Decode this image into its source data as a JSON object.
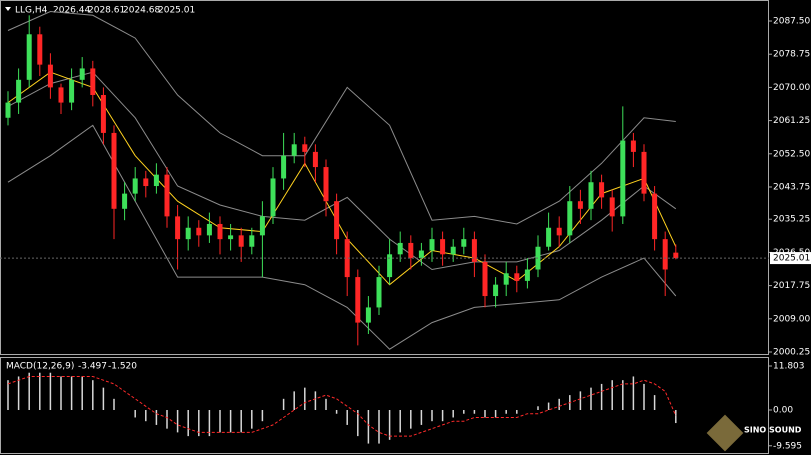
{
  "chart_data": [
    {
      "type": "candlestick",
      "title": "LLG,H4",
      "open": [
        2062,
        2066,
        2072,
        2084,
        2076,
        2070,
        2066,
        2072,
        2075,
        2068,
        2058,
        2038,
        2042,
        2046,
        2044,
        2047,
        2036,
        2030,
        2033,
        2031,
        2034,
        2030,
        2031,
        2028,
        2031,
        2036,
        2046,
        2052,
        2055,
        2053,
        2049,
        2040,
        2030,
        2020,
        2008,
        2012,
        2020,
        2026,
        2029,
        2025,
        2027,
        2030,
        2026,
        2028,
        2030,
        2024,
        2015,
        2018,
        2021,
        2019,
        2022,
        2028,
        2033,
        2031,
        2040,
        2038,
        2045,
        2041,
        2036,
        2056,
        2053,
        2042,
        2030,
        2026.44
      ],
      "high": [
        2069,
        2075,
        2089,
        2086,
        2079,
        2071,
        2075,
        2078,
        2077,
        2070,
        2060,
        2045,
        2049,
        2048,
        2050,
        2049,
        2039,
        2036,
        2035,
        2037,
        2036,
        2034,
        2033,
        2033,
        2040,
        2049,
        2058,
        2058,
        2057,
        2055,
        2051,
        2042,
        2032,
        2022,
        2015,
        2023,
        2030,
        2032,
        2031,
        2029,
        2033,
        2032,
        2030,
        2033,
        2032,
        2026,
        2020,
        2024,
        2023,
        2025,
        2031,
        2037,
        2036,
        2044,
        2043,
        2048,
        2047,
        2043,
        2065,
        2058,
        2055,
        2044,
        2032,
        2028.61
      ],
      "low": [
        2060,
        2063,
        2070,
        2073,
        2067,
        2063,
        2064,
        2070,
        2065,
        2055,
        2030,
        2035,
        2040,
        2041,
        2042,
        2033,
        2022,
        2027,
        2028,
        2029,
        2026,
        2027,
        2024,
        2026,
        2020,
        2034,
        2043,
        2050,
        2049,
        2045,
        2036,
        2026,
        2015,
        2002,
        2005,
        2010,
        2018,
        2024,
        2022,
        2023,
        2024,
        2023,
        2024,
        2026,
        2020,
        2012,
        2012,
        2015,
        2016,
        2017,
        2020,
        2027,
        2028,
        2029,
        2034,
        2035,
        2038,
        2032,
        2034,
        2049,
        2040,
        2027,
        2015,
        2024.68
      ],
      "close": [
        2066,
        2072,
        2084,
        2076,
        2070,
        2066,
        2072,
        2075,
        2068,
        2058,
        2038,
        2042,
        2046,
        2044,
        2047,
        2036,
        2030,
        2033,
        2031,
        2034,
        2030,
        2031,
        2028,
        2031,
        2036,
        2046,
        2052,
        2055,
        2053,
        2049,
        2040,
        2030,
        2020,
        2008,
        2012,
        2020,
        2026,
        2029,
        2025,
        2027,
        2030,
        2026,
        2028,
        2030,
        2024,
        2015,
        2018,
        2021,
        2019,
        2022,
        2028,
        2033,
        2031,
        2040,
        2038,
        2045,
        2041,
        2036,
        2056,
        2053,
        2042,
        2030,
        2022,
        2025.01
      ],
      "ylim": [
        1999.46,
        2093.04
      ],
      "yticks": [
        2000.25,
        {
          "value": 2009,
          "label": "2009.00"
        },
        2017.75,
        {
          "value": 2026.5,
          "label": "2026.50"
        },
        2035.25,
        2043.75,
        {
          "value": 2052.5,
          "label": "2052.50"
        },
        2061.25,
        {
          "value": 2070,
          "label": "2070.00"
        },
        2078.75,
        {
          "value": 2087.5,
          "label": "2087.50"
        }
      ],
      "colors": {
        "up": "#3ee05a",
        "down": "#ff2626"
      },
      "bands": {
        "x": [
          0,
          4,
          8,
          12,
          16,
          20,
          24,
          28,
          32,
          36,
          40,
          44,
          48,
          52,
          56,
          60,
          63
        ],
        "upper": [
          2085,
          2090,
          2089,
          2083,
          2068,
          2058,
          2052,
          2052,
          2070,
          2060,
          2035,
          2036,
          2034,
          2040,
          2050,
          2062,
          2061
        ],
        "middle": [
          2065,
          2071,
          2074,
          2062,
          2044,
          2039,
          2036,
          2035,
          2041,
          2030,
          2022,
          2024,
          2024,
          2027,
          2035,
          2044,
          2038
        ],
        "lower": [
          2045,
          2052,
          2060,
          2040,
          2020,
          2020,
          2020,
          2018,
          2012,
          2001,
          2008,
          2012,
          2013,
          2014,
          2020,
          2025,
          2015
        ],
        "color": "#8c8c8c"
      },
      "ma": {
        "values": [
          2066,
          2074,
          2070,
          2052,
          2040,
          2033,
          2032,
          2050,
          2030,
          2018,
          2027,
          2025,
          2019,
          2028,
          2042,
          2046,
          2028
        ],
        "color": "#ffd21f"
      }
    },
    {
      "type": "bar",
      "title": "MACD(12,26,9)",
      "header_values": [
        -3.497,
        {
          "value": -1.52,
          "label": "-1.520"
        }
      ],
      "histogram": [
        8,
        9,
        10,
        10,
        10,
        9,
        9,
        9,
        8,
        6,
        3,
        0,
        -2,
        -3,
        -4,
        -5,
        -6,
        -7,
        -7,
        -7,
        -6,
        -6,
        -6,
        -5,
        -3,
        0,
        3,
        5,
        6,
        5,
        3,
        -1,
        -4,
        -7,
        -9,
        -9,
        -8,
        -6,
        -5,
        -4,
        -3,
        -3,
        -2,
        -1,
        -1,
        -2,
        -2,
        -1,
        -1,
        0,
        1,
        2,
        3,
        4,
        5,
        6,
        7,
        8,
        8,
        9,
        7,
        4,
        0,
        -3.497
      ],
      "signal": [
        7,
        8,
        9,
        9,
        9,
        9,
        9,
        9,
        9,
        8,
        7,
        5,
        3,
        1,
        -1,
        -2,
        -4,
        -5,
        -6,
        -6,
        -6,
        -6,
        -6,
        -6,
        -5,
        -4,
        -2,
        0,
        2,
        3,
        4,
        3,
        1,
        -1,
        -4,
        -6,
        -7,
        -7,
        -7,
        -6,
        -5,
        -4,
        -3,
        -3,
        -2,
        -2,
        -2,
        -2,
        -2,
        -1,
        -1,
        0,
        1,
        2,
        3,
        4,
        5,
        6,
        7,
        7,
        8,
        7,
        5,
        -1.52
      ],
      "ylim": [
        -11.53,
        13.95
      ],
      "yticks": [
        11.803,
        {
          "value": 0,
          "label": "0.00"
        },
        -9.595
      ],
      "colors": {
        "histogram": "#d8d8d8",
        "signal": "#ff2a2a"
      }
    }
  ],
  "watermark": "SINO SOUND"
}
